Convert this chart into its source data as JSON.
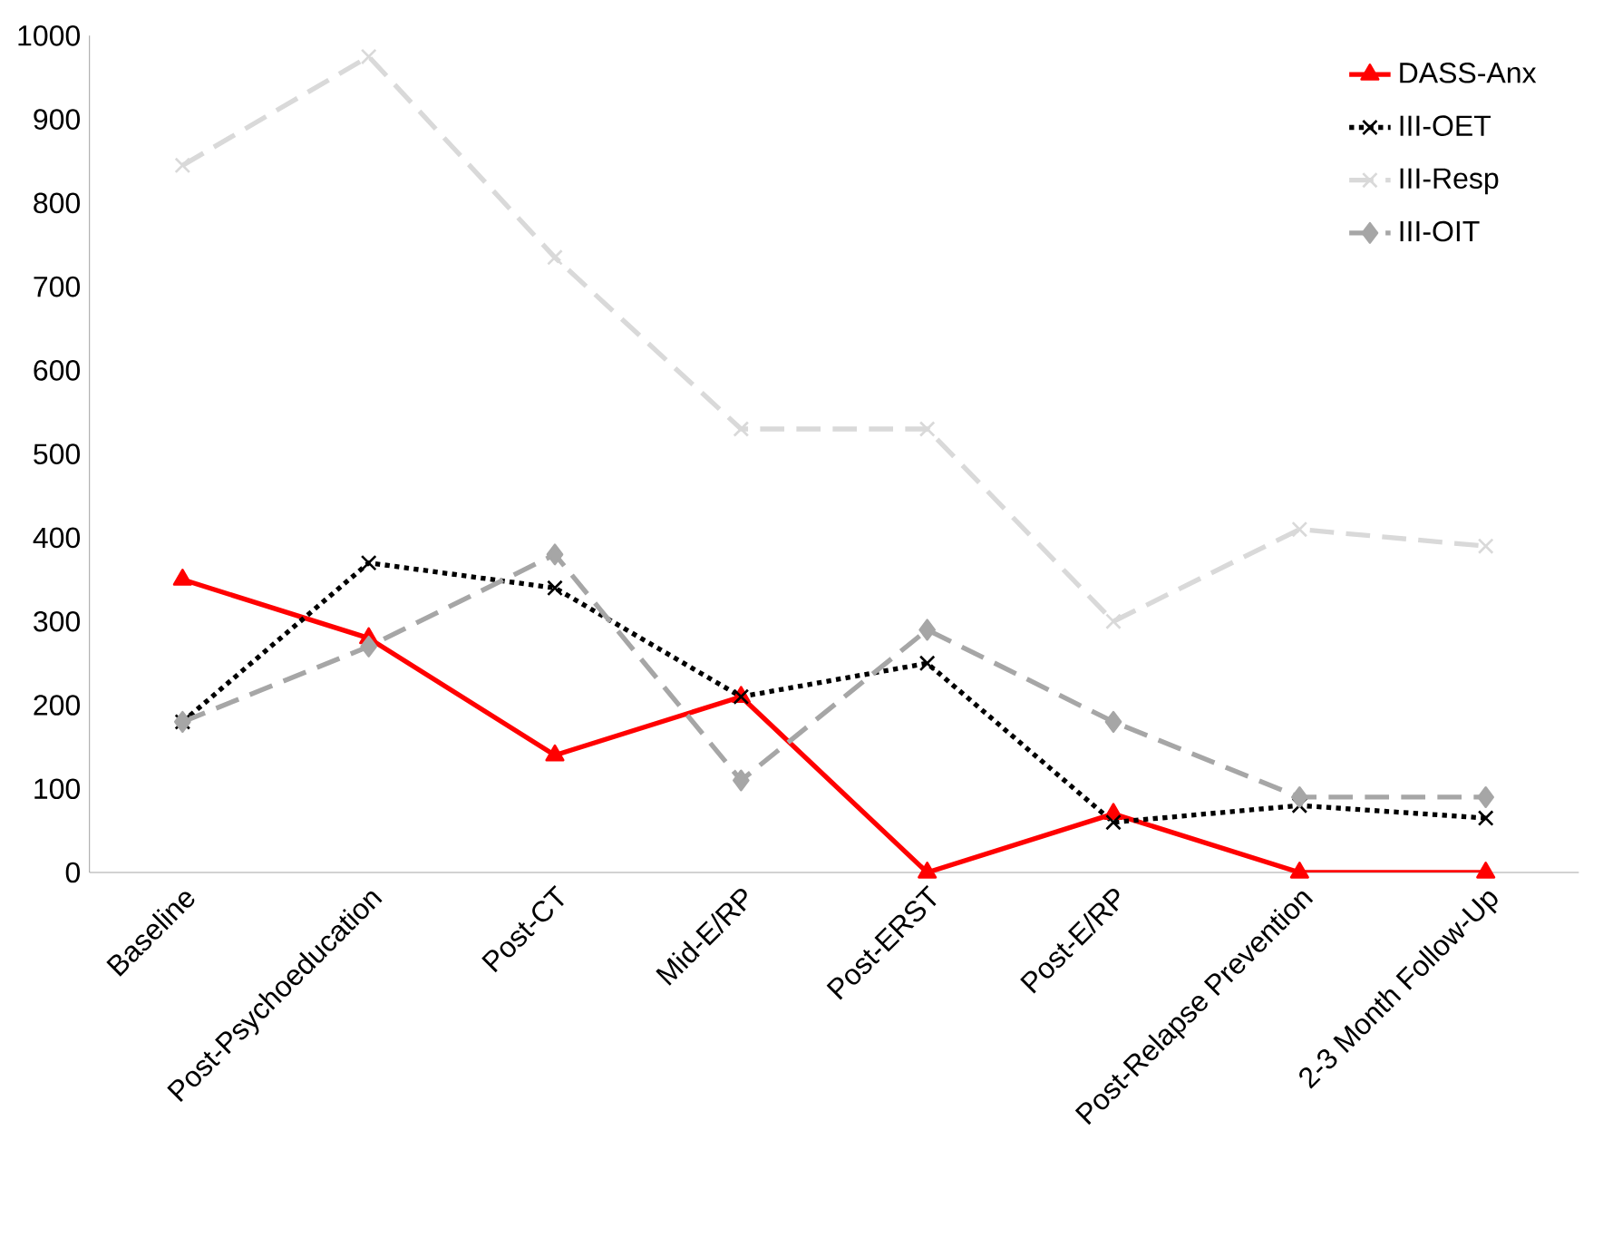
{
  "chart_data": {
    "type": "line",
    "categories": [
      "Baseline",
      "Post-Psychoeducation",
      "Post-CT",
      "Mid-E/RP",
      "Post-ERST",
      "Post-E/RP",
      "Post-Relapse Prevention",
      "2-3 Month Follow-Up"
    ],
    "series": [
      {
        "name": "DASS-Anx",
        "color": "#ff0000",
        "marker": "triangle",
        "line_style": "solid",
        "values": [
          350,
          280,
          140,
          210,
          0,
          70,
          0,
          0
        ]
      },
      {
        "name": "III-OET",
        "color": "#000000",
        "marker": "cross",
        "line_style": "dotted",
        "values": [
          180,
          370,
          340,
          210,
          250,
          60,
          80,
          65
        ]
      },
      {
        "name": "III-Resp",
        "color": "#d9d9d9",
        "marker": "cross",
        "line_style": "dashed",
        "values": [
          845,
          975,
          735,
          530,
          530,
          300,
          410,
          390
        ]
      },
      {
        "name": "III-OIT",
        "color": "#a6a6a6",
        "marker": "diamond",
        "line_style": "dashed",
        "values": [
          180,
          270,
          380,
          110,
          290,
          180,
          90,
          90
        ]
      }
    ],
    "ylim": [
      0,
      1000
    ],
    "yticks": [
      0,
      100,
      200,
      300,
      400,
      500,
      600,
      700,
      800,
      900,
      1000
    ],
    "grid": false,
    "legend": "top right"
  }
}
